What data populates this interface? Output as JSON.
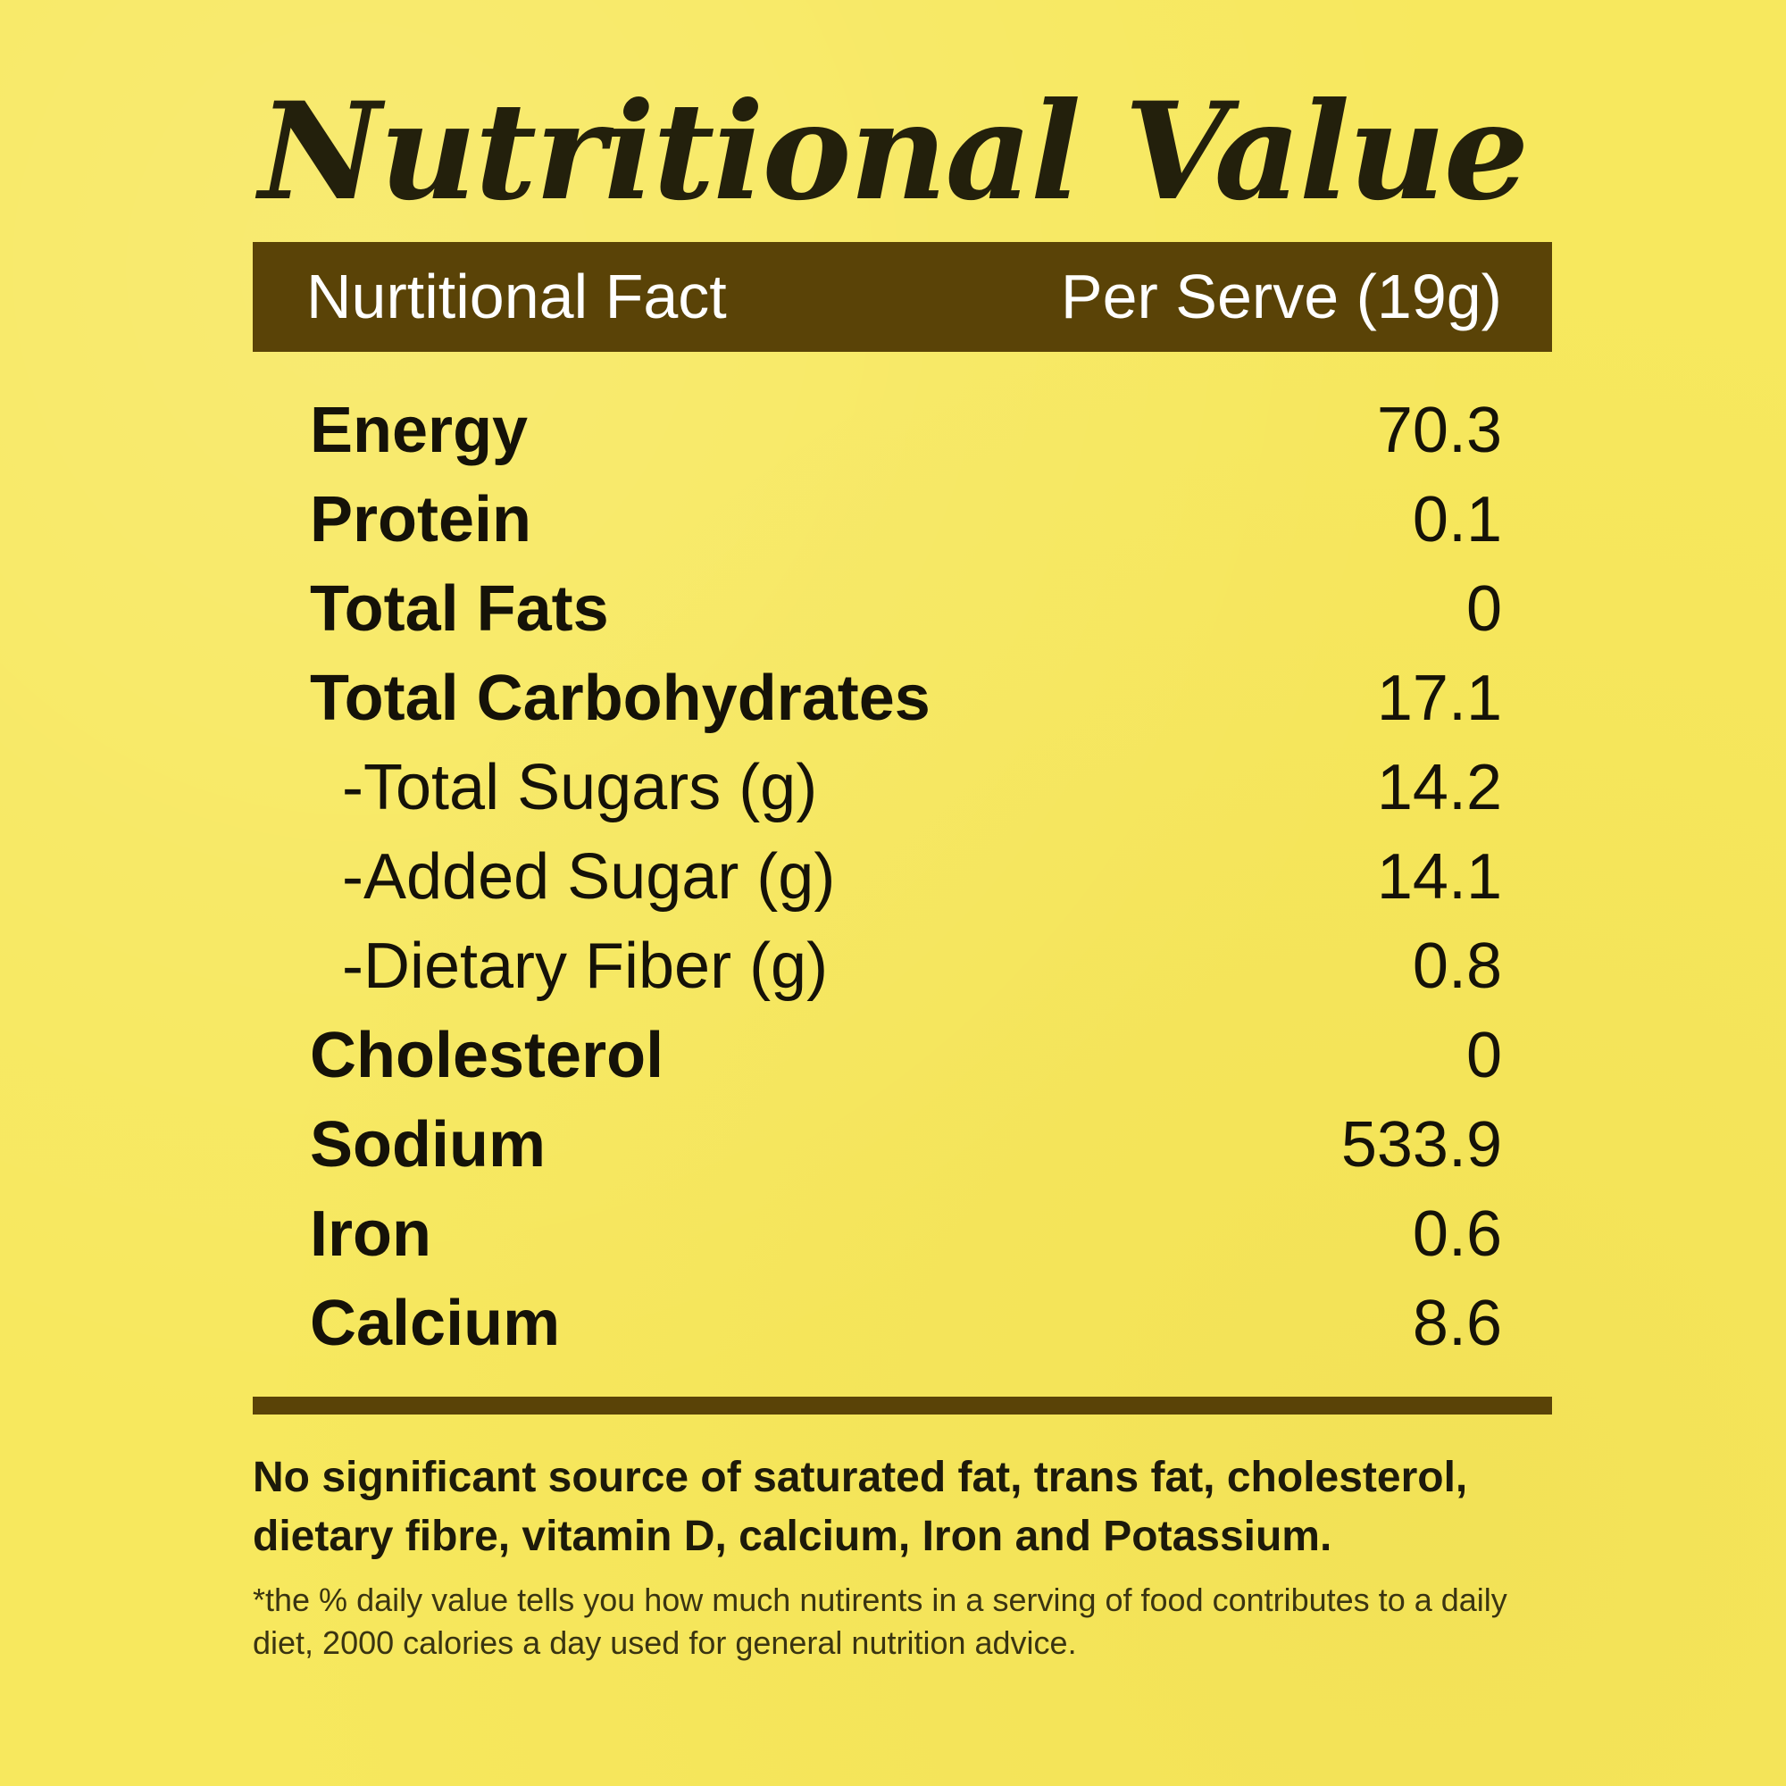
{
  "title": "Nutritional Value",
  "header": {
    "left_label": "Nurtitional Fact",
    "right_label": "Per Serve (19g)"
  },
  "rows": [
    {
      "label": "Energy",
      "value": "70.3",
      "sub": false
    },
    {
      "label": "Protein",
      "value": "0.1",
      "sub": false
    },
    {
      "label": "Total Fats",
      "value": "0",
      "sub": false
    },
    {
      "label": "Total Carbohydrates",
      "value": "17.1",
      "sub": false
    },
    {
      "label": "-Total Sugars (g)",
      "value": "14.2",
      "sub": true
    },
    {
      "label": "-Added Sugar (g)",
      "value": "14.1",
      "sub": true
    },
    {
      "label": "-Dietary Fiber (g)",
      "value": "0.8",
      "sub": true
    },
    {
      "label": "Cholesterol",
      "value": "0",
      "sub": false
    },
    {
      "label": "Sodium",
      "value": "533.9",
      "sub": false
    },
    {
      "label": "Iron",
      "value": "0.6",
      "sub": false
    },
    {
      "label": "Calcium",
      "value": "8.6",
      "sub": false
    }
  ],
  "note": "No significant source of saturated fat, trans fat, cholesterol, dietary fibre, vitamin D, calcium, Iron and Potassium.",
  "footnote": "*the % daily value tells you how much nutirents in a serving of food contributes to a daily diet, 2000 calories a day used for general nutrition advice.",
  "colors": {
    "background": "#f7e85e",
    "header_bar": "#5a4307",
    "text": "#151208"
  }
}
